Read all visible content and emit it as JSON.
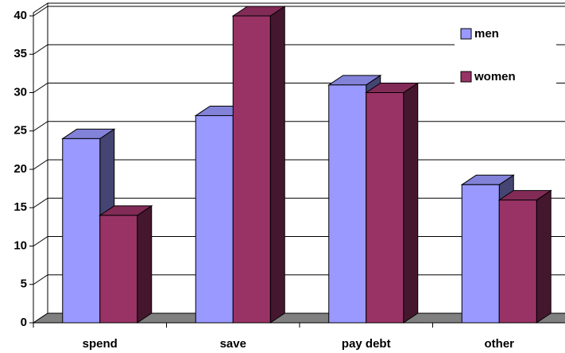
{
  "chart_data": {
    "type": "bar3d",
    "categories": [
      "spend",
      "save",
      "pay debt",
      "other"
    ],
    "series": [
      {
        "name": "men",
        "color": "#9999ff",
        "values": [
          24,
          27,
          31,
          18
        ]
      },
      {
        "name": "women",
        "color": "#993366",
        "values": [
          14,
          40,
          30,
          16
        ]
      }
    ],
    "ylim": [
      0,
      40
    ],
    "yticks": [
      0,
      5,
      10,
      15,
      20,
      25,
      30,
      35,
      40
    ],
    "grid": true,
    "legend": "top-right"
  }
}
